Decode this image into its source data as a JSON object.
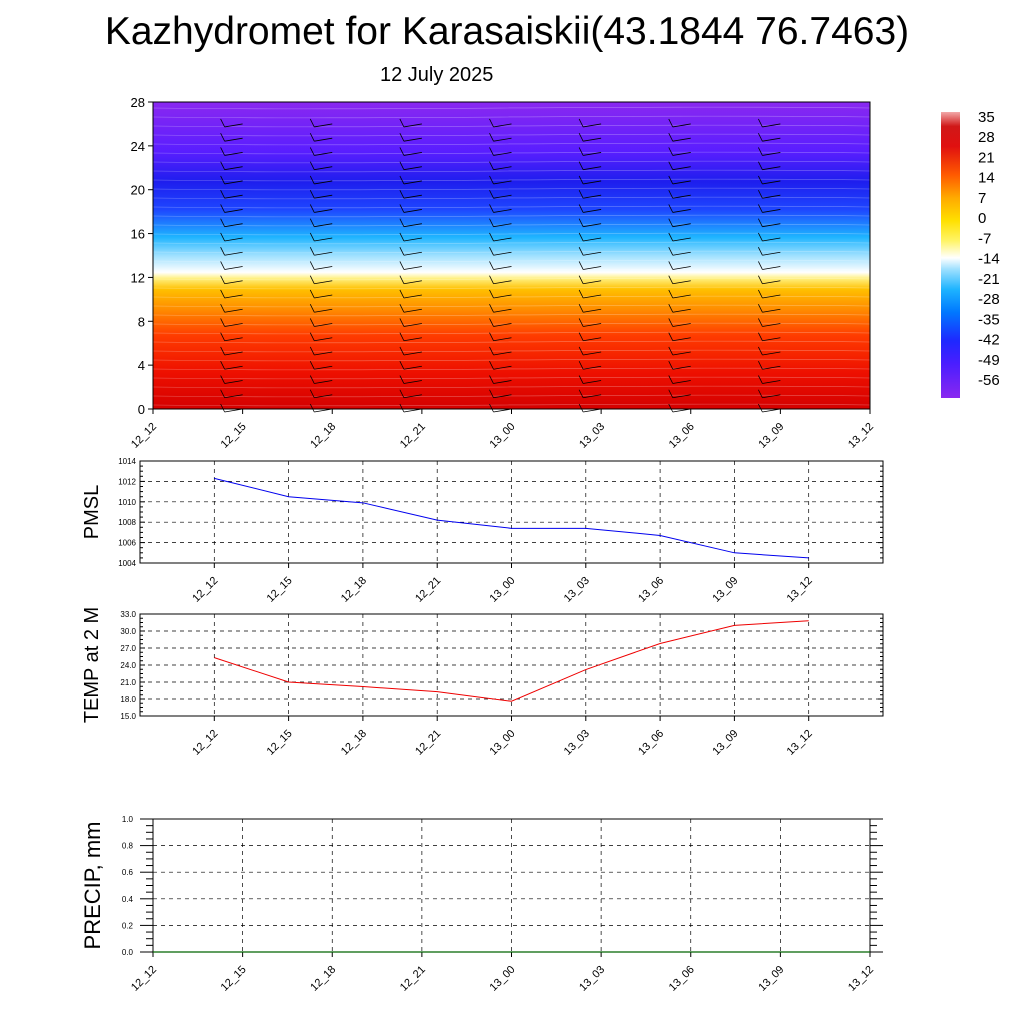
{
  "header": {
    "title": "Kazhydromet for Karasaiskii(43.1844 76.7463)",
    "subtitle": "12 July 2025"
  },
  "colors": {
    "pmsl_line": "#0000ee",
    "temp_line": "#ee0000",
    "precip_line": "#006400",
    "grid": "#000000"
  },
  "chart_data": [
    {
      "type": "heatmap",
      "title": "",
      "xlabel": "",
      "ylabel": "",
      "x_tick_labels": [
        "12_12",
        "12_15",
        "12_18",
        "12_21",
        "13_00",
        "13_03",
        "13_06",
        "13_09",
        "13_12"
      ],
      "y_ticks": [
        0,
        4,
        8,
        12,
        16,
        20,
        24,
        28
      ],
      "ylim": [
        0,
        28
      ],
      "colorbar_labels": [
        "35",
        "28",
        "21",
        "14",
        "7",
        "0",
        "-7",
        "-14",
        "-21",
        "-28",
        "-35",
        "-42",
        "-49",
        "-56"
      ],
      "colorbar_colors": [
        "#f2a8a8",
        "#e01010",
        "#ff3c00",
        "#ff8800",
        "#ffbb00",
        "#ffe000",
        "#fff466",
        "#ffffff",
        "#9ee0ff",
        "#1eb4ff",
        "#0078ff",
        "#1e28ff",
        "#4a1eff",
        "#7a28f0"
      ],
      "wind_barbs": true,
      "legend_position": "right"
    },
    {
      "type": "line",
      "title": "",
      "xlabel": "",
      "ylabel": "PMSL",
      "x": [
        "12_12",
        "12_15",
        "12_18",
        "12_21",
        "13_00",
        "13_03",
        "13_06",
        "13_09",
        "13_12"
      ],
      "y_tick_labels": [
        "1004",
        "1006",
        "1008",
        "1010",
        "1012",
        "1014"
      ],
      "ylim": [
        1004,
        1014
      ],
      "series": [
        {
          "values": [
            1012.3,
            1010.5,
            1009.9,
            1008.2,
            1007.4,
            1007.4,
            1006.7,
            1005.0,
            1004.5
          ]
        }
      ],
      "grid": true
    },
    {
      "type": "line",
      "title": "",
      "xlabel": "",
      "ylabel": "TEMP at 2 M",
      "x": [
        "12_12",
        "12_15",
        "12_18",
        "12_21",
        "13_00",
        "13_03",
        "13_06",
        "13_09",
        "13_12"
      ],
      "y_tick_labels": [
        "15.0",
        "18.0",
        "21.0",
        "24.0",
        "27.0",
        "30.0",
        "33.0"
      ],
      "ylim": [
        15,
        33
      ],
      "series": [
        {
          "values": [
            25.3,
            21.0,
            20.2,
            19.3,
            17.6,
            23.2,
            27.8,
            31.0,
            31.8
          ]
        }
      ],
      "grid": true
    },
    {
      "type": "line",
      "title": "",
      "xlabel": "",
      "ylabel": "PRECIP, mm",
      "x": [
        "12_12",
        "12_15",
        "12_18",
        "12_21",
        "13_00",
        "13_03",
        "13_06",
        "13_09",
        "13_12"
      ],
      "y_tick_labels": [
        "0.0",
        "0.2",
        "0.4",
        "0.6",
        "0.8",
        "1.0"
      ],
      "ylim": [
        0,
        1
      ],
      "series": [
        {
          "values": [
            0,
            0,
            0,
            0,
            0,
            0,
            0,
            0,
            0
          ]
        }
      ],
      "grid": true
    }
  ]
}
